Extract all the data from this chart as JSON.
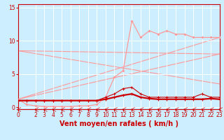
{
  "xlabel": "Vent moyen/en rafales ( km/h )",
  "xlim": [
    0,
    23
  ],
  "ylim": [
    -0.3,
    15.5
  ],
  "yticks": [
    0,
    5,
    10,
    15
  ],
  "xticks": [
    0,
    2,
    3,
    4,
    5,
    6,
    7,
    8,
    9,
    10,
    11,
    12,
    13,
    14,
    15,
    16,
    17,
    18,
    19,
    20,
    21,
    22,
    23
  ],
  "bg_color": "#cceeff",
  "grid_color": "#ffffff",
  "light_pink": "#ff9999",
  "dark_red": "#cc0000",
  "diag_lines": [
    {
      "x0": 0,
      "y0": 8.5,
      "x1": 23,
      "y1": 8.0
    },
    {
      "x0": 0,
      "y0": 8.5,
      "x1": 23,
      "y1": 3.5
    },
    {
      "x0": 0,
      "y0": 1.2,
      "x1": 23,
      "y1": 10.5
    },
    {
      "x0": 0,
      "y0": 1.2,
      "x1": 23,
      "y1": 8.0
    }
  ],
  "gust_line": {
    "x": [
      0,
      1,
      2,
      3,
      4,
      5,
      6,
      7,
      8,
      9,
      10,
      11,
      12,
      13,
      14,
      15,
      16,
      17,
      18,
      19,
      20,
      21,
      22,
      23
    ],
    "y": [
      1.2,
      0.4,
      0.2,
      0.1,
      0.1,
      0.1,
      0.1,
      0.2,
      0.2,
      0.4,
      1.5,
      4.5,
      5.5,
      13.0,
      10.5,
      11.5,
      11.0,
      11.5,
      11.0,
      11.0,
      10.5,
      10.5,
      10.5,
      10.5
    ]
  },
  "mean_line1": {
    "x": [
      0,
      1,
      2,
      3,
      4,
      5,
      6,
      7,
      8,
      9,
      10,
      11,
      12,
      13,
      14,
      15,
      16,
      17,
      18,
      19,
      20,
      21,
      22,
      23
    ],
    "y": [
      1.0,
      1.0,
      1.0,
      1.0,
      1.0,
      1.0,
      1.0,
      1.0,
      1.0,
      1.0,
      1.2,
      1.5,
      1.8,
      2.0,
      1.5,
      1.3,
      1.2,
      1.2,
      1.2,
      1.2,
      1.2,
      1.2,
      1.3,
      1.2
    ]
  },
  "mean_line2": {
    "x": [
      0,
      1,
      2,
      3,
      4,
      5,
      6,
      7,
      8,
      9,
      10,
      11,
      12,
      13,
      14,
      15,
      16,
      17,
      18,
      19,
      20,
      21,
      22,
      23
    ],
    "y": [
      1.0,
      1.0,
      1.0,
      1.0,
      1.0,
      1.0,
      1.0,
      1.0,
      1.0,
      1.0,
      1.5,
      2.0,
      2.8,
      3.0,
      2.0,
      1.5,
      1.5,
      1.5,
      1.5,
      1.5,
      1.5,
      2.0,
      1.5,
      1.5
    ]
  },
  "xlabel_fontsize": 7,
  "tick_fontsize": 5.5
}
